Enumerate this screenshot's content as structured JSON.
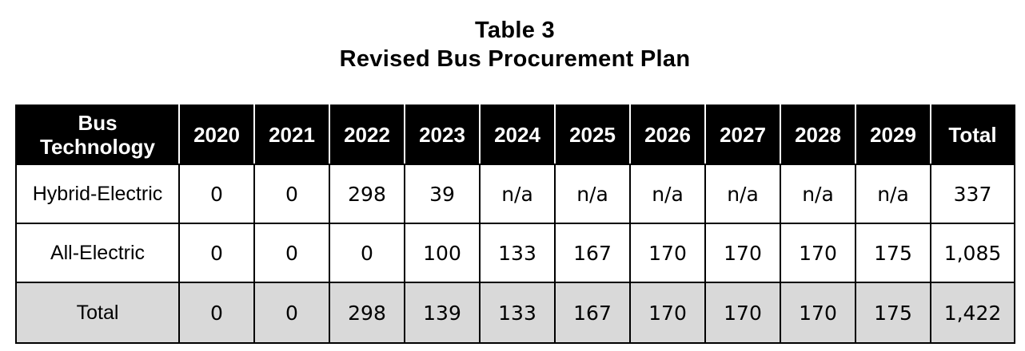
{
  "title": {
    "line1": "Table 3",
    "line2": "Revised Bus Procurement Plan"
  },
  "table": {
    "headers": [
      "Bus Technology",
      "2020",
      "2021",
      "2022",
      "2023",
      "2024",
      "2025",
      "2026",
      "2027",
      "2028",
      "2029",
      "Total"
    ],
    "header_first_line1": "Bus",
    "header_first_line2": "Technology",
    "rows": [
      {
        "label": "Hybrid-Electric",
        "cells": [
          "0",
          "0",
          "298",
          "39",
          "n/a",
          "n/a",
          "n/a",
          "n/a",
          "n/a",
          "n/a",
          "337"
        ]
      },
      {
        "label": "All-Electric",
        "cells": [
          "0",
          "0",
          "0",
          "100",
          "133",
          "167",
          "170",
          "170",
          "170",
          "175",
          "1,085"
        ]
      },
      {
        "label": "Total",
        "cells": [
          "0",
          "0",
          "298",
          "139",
          "133",
          "167",
          "170",
          "170",
          "170",
          "175",
          "1,422"
        ]
      }
    ]
  },
  "colors": {
    "header_background": "#000000",
    "header_text": "#ffffff",
    "total_row_background": "#d9d9d9"
  }
}
